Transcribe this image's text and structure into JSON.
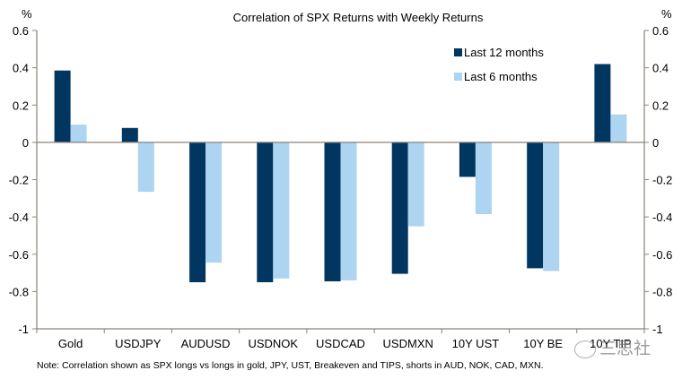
{
  "chart_data": {
    "type": "bar",
    "title": "Correlation of SPX Returns with Weekly Returns",
    "xlabel": "",
    "ylabel": "%",
    "ylabel_right": "%",
    "ylim": [
      -1,
      0.6
    ],
    "yticks": [
      0.6,
      0.4,
      0.2,
      0,
      -0.2,
      -0.4,
      -0.6,
      -0.8,
      -1
    ],
    "ytick_labels": [
      "0.6",
      "0.4",
      "0.2",
      "0",
      "-0.2",
      "-0.4",
      "-0.6",
      "-0.8",
      "-1"
    ],
    "grid": false,
    "legend_position": "top-right",
    "categories": [
      "Gold",
      "USDJPY",
      "AUDUSD",
      "USDNOK",
      "USDCAD",
      "USDMXN",
      "10Y UST",
      "10Y BE",
      "10Y TIP"
    ],
    "series": [
      {
        "name": "Last 12 months",
        "color": "#003660",
        "values": [
          0.385,
          0.077,
          -0.75,
          -0.75,
          -0.745,
          -0.705,
          -0.185,
          -0.675,
          0.42
        ]
      },
      {
        "name": "Last 6 months",
        "color": "#add4f0",
        "values": [
          0.095,
          -0.265,
          -0.645,
          -0.73,
          -0.74,
          -0.45,
          -0.385,
          -0.69,
          0.15
        ]
      }
    ],
    "note": "Note: Correlation shown as SPX longs vs longs in gold, JPY, UST, Breakeven and TIPS, shorts in AUD, NOK, CAD, MXN."
  },
  "watermark": {
    "text": "三思社",
    "icon": "wechat-icon"
  },
  "colors": {
    "axis": "#8c8279"
  }
}
